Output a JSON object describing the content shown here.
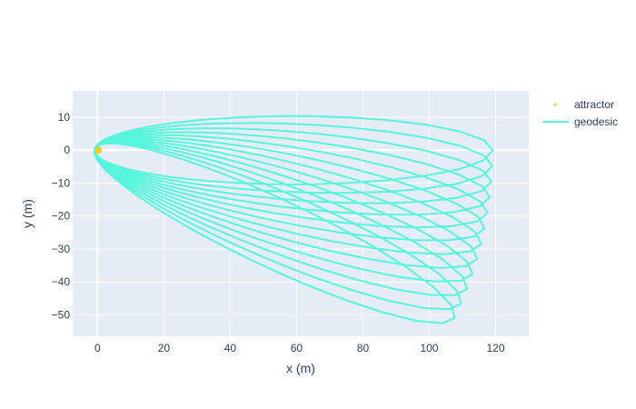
{
  "chart_data": {
    "type": "line",
    "title": "",
    "xlabel": "x (m)",
    "ylabel": "y (m)",
    "xlim": [
      -7.5,
      130
    ],
    "ylim": [
      -56.5,
      18
    ],
    "xticks": [
      0,
      20,
      40,
      60,
      80,
      100,
      120
    ],
    "yticks": [
      10,
      0,
      -10,
      -20,
      -30,
      -40,
      -50
    ],
    "grid": true,
    "legend": "top-right",
    "series": [
      {
        "name": "attractor",
        "kind": "marker",
        "color": "#ffcc00",
        "points": [
          [
            0,
            0
          ]
        ]
      },
      {
        "name": "geodesic",
        "kind": "orbit",
        "color": "#56f5dc",
        "orbit": {
          "semi_major_axis": 60,
          "eccentricity": 0.985,
          "precession_per_loop_deg": 2.3,
          "loops": 12
        }
      }
    ],
    "colors": {
      "plot_bg": "#e5ecf6",
      "grid": "#ffffff",
      "text": "#2a3f5f"
    }
  }
}
